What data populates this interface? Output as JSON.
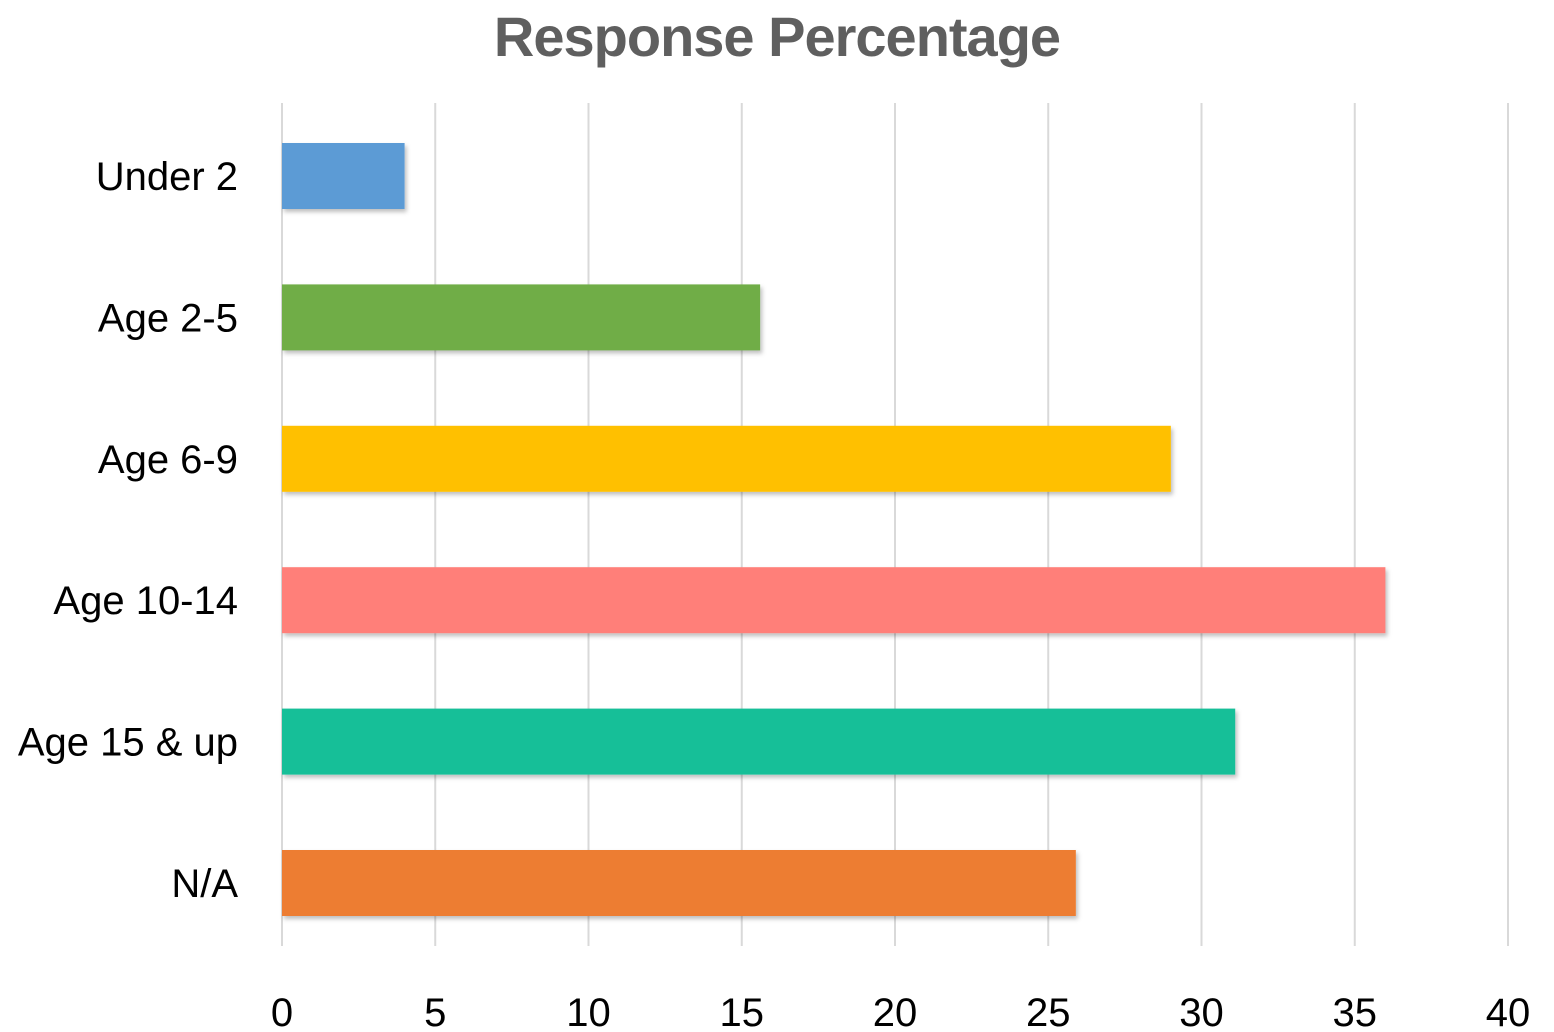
{
  "chart_data": {
    "type": "bar",
    "orientation": "horizontal",
    "title": "Response Percentage",
    "xlabel": "",
    "ylabel": "",
    "categories": [
      "Under 2",
      "Age 2-5",
      "Age 6-9",
      "Age 10-14",
      "Age 15 & up",
      "N/A"
    ],
    "values": [
      4,
      15.6,
      29,
      36,
      31.1,
      25.9
    ],
    "colors": [
      "#5b9bd5",
      "#70ad47",
      "#ffc000",
      "#ff7f79",
      "#17bf98",
      "#ed7d31"
    ],
    "xlim": [
      0,
      40
    ],
    "x_ticks": [
      "0",
      "5",
      "10",
      "15",
      "20",
      "25",
      "30",
      "35",
      "40"
    ],
    "grid": true,
    "legend": "none"
  }
}
